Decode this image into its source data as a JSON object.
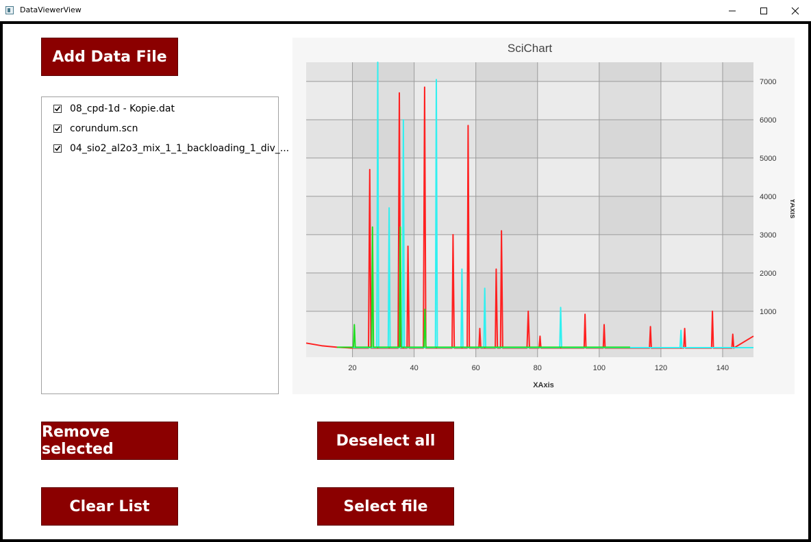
{
  "window": {
    "title": "DataViewerView"
  },
  "buttons": {
    "add_data_file": "Add Data File",
    "remove_selected": "Remove selected",
    "deselect_all": "Deselect all",
    "clear_list": "Clear List",
    "select_file": "Select file"
  },
  "file_list": [
    {
      "name": "08_cpd-1d - Kopie.dat",
      "checked": true
    },
    {
      "name": "corundum.scn",
      "checked": true
    },
    {
      "name": "04_sio2_al2o3_mix_1_1_backloading_1_div_...",
      "checked": true
    }
  ],
  "colors": {
    "button_bg": "#8b0000",
    "series_red": "#ff2020",
    "series_cyan": "#30f0f0",
    "series_green": "#20dd20"
  },
  "chart_data": {
    "type": "line",
    "title": "SciChart",
    "xlabel": "XAxis",
    "ylabel": "YAxis",
    "xlim": [
      5,
      150
    ],
    "ylim": [
      -200,
      7500
    ],
    "x_ticks": [
      20,
      40,
      60,
      80,
      100,
      120,
      140
    ],
    "y_ticks": [
      1000,
      2000,
      3000,
      4000,
      5000,
      6000,
      7000
    ],
    "grid": true,
    "series": [
      {
        "color": "#ff2020",
        "x": [
          5,
          10,
          15,
          20,
          25.2,
          25.6,
          26,
          30,
          34.8,
          35.2,
          35.6,
          37.7,
          38,
          38.4,
          43,
          43.4,
          43.8,
          52.3,
          52.6,
          53,
          57.2,
          57.5,
          57.9,
          61,
          61.3,
          61.6,
          66.3,
          66.6,
          67,
          68,
          68.3,
          68.7,
          76.6,
          77,
          77.4,
          80.5,
          80.8,
          81.1,
          95.1,
          95.4,
          95.7,
          101.3,
          101.6,
          101.9,
          116.3,
          116.6,
          116.9,
          127.4,
          127.7,
          128,
          136.4,
          136.7,
          137,
          143,
          143.3,
          143.6,
          150
        ],
        "values": [
          170,
          100,
          60,
          40,
          40,
          4700,
          40,
          40,
          40,
          6700,
          40,
          40,
          2700,
          40,
          40,
          6850,
          40,
          40,
          3000,
          40,
          40,
          5850,
          40,
          40,
          550,
          40,
          40,
          2100,
          40,
          40,
          3100,
          40,
          40,
          1000,
          40,
          40,
          350,
          40,
          40,
          920,
          40,
          40,
          650,
          40,
          40,
          600,
          40,
          40,
          550,
          40,
          40,
          1000,
          40,
          40,
          400,
          40,
          350
        ]
      },
      {
        "color": "#30f0f0",
        "x": [
          20,
          27.9,
          28.2,
          28.5,
          31.6,
          31.9,
          32.2,
          36.2,
          36.5,
          36.8,
          46.9,
          47.2,
          47.5,
          55.2,
          55.5,
          55.8,
          62.6,
          62.9,
          63.2,
          87.2,
          87.5,
          87.8,
          126.2,
          126.5,
          126.8,
          150
        ],
        "values": [
          50,
          50,
          7500,
          50,
          50,
          3700,
          50,
          50,
          6000,
          50,
          50,
          7050,
          50,
          50,
          2100,
          50,
          50,
          1600,
          50,
          50,
          1100,
          50,
          50,
          500,
          50,
          50
        ]
      },
      {
        "color": "#20dd20",
        "x": [
          15,
          20.3,
          20.6,
          20.9,
          26.2,
          26.5,
          26.8,
          35.2,
          35.5,
          35.8,
          43.2,
          43.5,
          43.8,
          110
        ],
        "values": [
          60,
          60,
          650,
          60,
          60,
          3200,
          60,
          60,
          3200,
          60,
          60,
          1050,
          60,
          60
        ]
      }
    ]
  }
}
